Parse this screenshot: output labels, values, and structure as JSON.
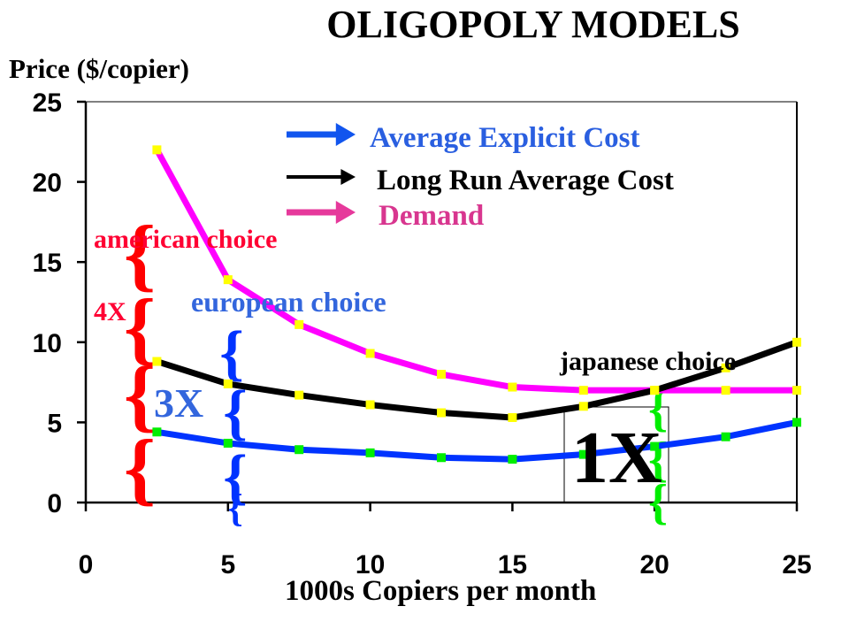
{
  "title": "OLIGOPOLY MODELS",
  "chart_data": {
    "type": "line",
    "ylabel": "Price ($/copier)",
    "xlabel": "1000s Copiers per month",
    "xlim": [
      0,
      25
    ],
    "ylim": [
      0,
      25
    ],
    "xticks": [
      "0",
      "5",
      "10",
      "15",
      "20",
      "25"
    ],
    "yticks": [
      "0",
      "5",
      "10",
      "15",
      "20",
      "25"
    ],
    "grid": false,
    "legend_position": "top-right",
    "series": [
      {
        "name": "Demand",
        "color": "#ff00ff",
        "arrow_color": "#e6399b",
        "marker_color": "#ffff00",
        "x": [
          2.5,
          5,
          7.5,
          10,
          12.5,
          15,
          17.5,
          20,
          22.5,
          25
        ],
        "y": [
          22,
          13.9,
          11.1,
          9.3,
          8.0,
          7.2,
          7.0,
          7.0,
          7.0,
          7.0
        ]
      },
      {
        "name": "Long Run Average Cost",
        "color": "#000000",
        "arrow_color": "#000000",
        "marker_color": "#ffff00",
        "x": [
          2.5,
          5,
          7.5,
          10,
          12.5,
          15,
          17.5,
          20,
          22.5,
          25
        ],
        "y": [
          8.8,
          7.4,
          6.7,
          6.1,
          5.6,
          5.3,
          6.0,
          7.0,
          8.4,
          10.0
        ]
      },
      {
        "name": "Average Explicit Cost",
        "color": "#0033ff",
        "arrow_color": "#1155ee",
        "marker_color": "#00ee00",
        "x": [
          2.5,
          5,
          7.5,
          10,
          12.5,
          15,
          17.5,
          20,
          22.5,
          25
        ],
        "y": [
          4.4,
          3.7,
          3.3,
          3.1,
          2.8,
          2.7,
          3.0,
          3.5,
          4.1,
          5.0
        ]
      }
    ],
    "annotations": [
      {
        "text": "american choice",
        "color": "#ff0033"
      },
      {
        "text": "4X",
        "color": "#ff0033"
      },
      {
        "text": "european choice",
        "color": "#3366dd"
      },
      {
        "text": "3X",
        "color": "#3366dd"
      },
      {
        "text": "japanese choice",
        "color": "#000000"
      },
      {
        "text": "1X",
        "color": "#000000"
      }
    ],
    "brace_colors": {
      "american": "#ff0000",
      "european": "#0033ff",
      "japanese": "#00ee00"
    }
  }
}
